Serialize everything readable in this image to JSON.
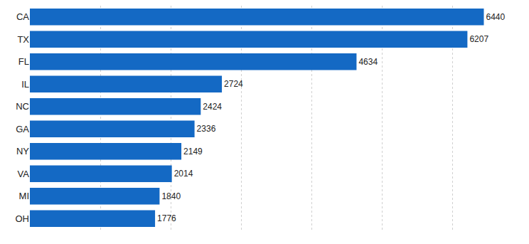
{
  "chart_data": {
    "type": "bar",
    "orientation": "horizontal",
    "categories": [
      "CA",
      "TX",
      "FL",
      "IL",
      "NC",
      "GA",
      "NY",
      "VA",
      "MI",
      "OH"
    ],
    "values": [
      6440,
      6207,
      4634,
      2724,
      2424,
      2336,
      2149,
      2014,
      1840,
      1776
    ],
    "color": "#1469c4",
    "xlim": [
      0,
      7000
    ],
    "xticks": [
      0,
      1000,
      2000,
      3000,
      4000,
      5000,
      6000,
      7000
    ],
    "grid": true,
    "data_labels": true,
    "tick_labels": "y"
  }
}
